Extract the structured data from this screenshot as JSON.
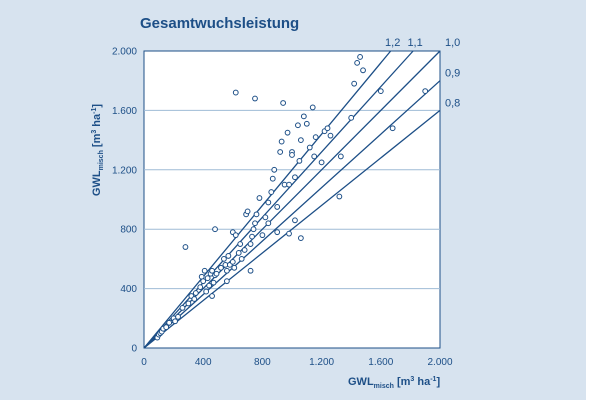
{
  "chart_data": {
    "type": "scatter",
    "title": "Gesamtwuchsleistung",
    "xlabel": {
      "main": "GWL",
      "sub": "misch",
      "unit_pre": " [m",
      "unit_sup": "3",
      "unit_mid": " ha",
      "unit_sup2": "-1",
      "unit_post": "]"
    },
    "ylabel": {
      "main": "GWL",
      "sub": "misch",
      "unit_pre": " [m",
      "unit_sup": "3",
      "unit_mid": " ha",
      "unit_sup2": "-1",
      "unit_post": "]"
    },
    "xlim": [
      0,
      2000
    ],
    "ylim": [
      0,
      2000
    ],
    "xticks": [
      0,
      400,
      800,
      1200,
      1600,
      2000
    ],
    "xtick_labels": [
      "0",
      "400",
      "800",
      "1.200",
      "1.600",
      "2.000"
    ],
    "yticks": [
      0,
      400,
      800,
      1200,
      1600,
      2000
    ],
    "ytick_labels": [
      "0",
      "400",
      "800",
      "1.200",
      "1.600",
      "2.000"
    ],
    "grid": "horizontal",
    "reference_lines": [
      {
        "slope": 1.2,
        "label": "1,2"
      },
      {
        "slope": 1.1,
        "label": "1,1"
      },
      {
        "slope": 1.0,
        "label": "1,0"
      },
      {
        "slope": 0.9,
        "label": "0,9"
      },
      {
        "slope": 0.8,
        "label": "0,8"
      }
    ],
    "points": [
      [
        90,
        70
      ],
      [
        100,
        90
      ],
      [
        110,
        100
      ],
      [
        120,
        110
      ],
      [
        130,
        130
      ],
      [
        150,
        140
      ],
      [
        170,
        170
      ],
      [
        200,
        200
      ],
      [
        210,
        180
      ],
      [
        230,
        210
      ],
      [
        260,
        270
      ],
      [
        280,
        680
      ],
      [
        300,
        300
      ],
      [
        320,
        350
      ],
      [
        340,
        330
      ],
      [
        350,
        370
      ],
      [
        380,
        410
      ],
      [
        390,
        480
      ],
      [
        400,
        450
      ],
      [
        410,
        520
      ],
      [
        420,
        380
      ],
      [
        430,
        470
      ],
      [
        440,
        420
      ],
      [
        450,
        500
      ],
      [
        460,
        520
      ],
      [
        470,
        440
      ],
      [
        480,
        490
      ],
      [
        490,
        500
      ],
      [
        480,
        800
      ],
      [
        520,
        540
      ],
      [
        540,
        600
      ],
      [
        550,
        560
      ],
      [
        560,
        520
      ],
      [
        570,
        620
      ],
      [
        580,
        560
      ],
      [
        600,
        580
      ],
      [
        600,
        780
      ],
      [
        610,
        540
      ],
      [
        620,
        760
      ],
      [
        640,
        640
      ],
      [
        650,
        700
      ],
      [
        660,
        600
      ],
      [
        680,
        660
      ],
      [
        690,
        900
      ],
      [
        700,
        920
      ],
      [
        720,
        700
      ],
      [
        730,
        750
      ],
      [
        740,
        800
      ],
      [
        750,
        840
      ],
      [
        760,
        900
      ],
      [
        780,
        1010
      ],
      [
        800,
        760
      ],
      [
        820,
        880
      ],
      [
        840,
        980
      ],
      [
        860,
        1050
      ],
      [
        870,
        1140
      ],
      [
        880,
        1200
      ],
      [
        900,
        950
      ],
      [
        920,
        1320
      ],
      [
        930,
        1390
      ],
      [
        940,
        1650
      ],
      [
        950,
        1100
      ],
      [
        970,
        1450
      ],
      [
        980,
        1100
      ],
      [
        1000,
        1320
      ],
      [
        1000,
        1300
      ],
      [
        1020,
        1150
      ],
      [
        1040,
        1500
      ],
      [
        1050,
        1260
      ],
      [
        1060,
        1400
      ],
      [
        1080,
        1560
      ],
      [
        1100,
        1510
      ],
      [
        1120,
        1350
      ],
      [
        1140,
        1620
      ],
      [
        1150,
        1290
      ],
      [
        1160,
        1420
      ],
      [
        1200,
        1250
      ],
      [
        1220,
        1460
      ],
      [
        1240,
        1480
      ],
      [
        1260,
        1430
      ],
      [
        620,
        1720
      ],
      [
        750,
        1680
      ],
      [
        1420,
        1780
      ],
      [
        1440,
        1920
      ],
      [
        1460,
        1960
      ],
      [
        1480,
        1870
      ],
      [
        1400,
        1550
      ],
      [
        1330,
        1290
      ],
      [
        1680,
        1480
      ],
      [
        1900,
        1730
      ],
      [
        1600,
        1730
      ],
      [
        1320,
        1020
      ],
      [
        1060,
        740
      ],
      [
        980,
        770
      ],
      [
        1020,
        860
      ],
      [
        900,
        780
      ],
      [
        840,
        840
      ],
      [
        720,
        520
      ],
      [
        560,
        450
      ],
      [
        460,
        350
      ]
    ]
  }
}
